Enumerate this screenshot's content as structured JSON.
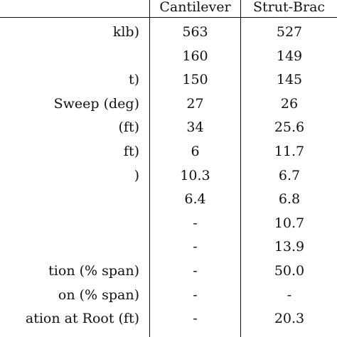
{
  "table": {
    "header": {
      "col1": "Cantilever",
      "col2": "Strut-Brac"
    },
    "rows": [
      {
        "label": "klb)",
        "cantilever": "563",
        "strut": "527"
      },
      {
        "label": "",
        "cantilever": "160",
        "strut": "149"
      },
      {
        "label": "t)",
        "cantilever": "150",
        "strut": "145"
      },
      {
        "label": "Sweep (deg)",
        "cantilever": "27",
        "strut": "26"
      },
      {
        "label": "(ft)",
        "cantilever": "34",
        "strut": "25.6"
      },
      {
        "label": "ft)",
        "cantilever": "6",
        "strut": "11.7"
      },
      {
        "label": ")",
        "cantilever": "10.3",
        "strut": "6.7"
      },
      {
        "label": "",
        "cantilever": "6.4",
        "strut": "6.8"
      },
      {
        "label": "",
        "cantilever": "-",
        "strut": "10.7"
      },
      {
        "label": "",
        "cantilever": "-",
        "strut": "13.9"
      },
      {
        "label": "tion (% span)",
        "cantilever": "-",
        "strut": "50.0"
      },
      {
        "label": "on (% span)",
        "cantilever": "-",
        "strut": "-"
      },
      {
        "label": "ation at Root (ft)",
        "cantilever": "-",
        "strut": "20.3"
      }
    ]
  }
}
